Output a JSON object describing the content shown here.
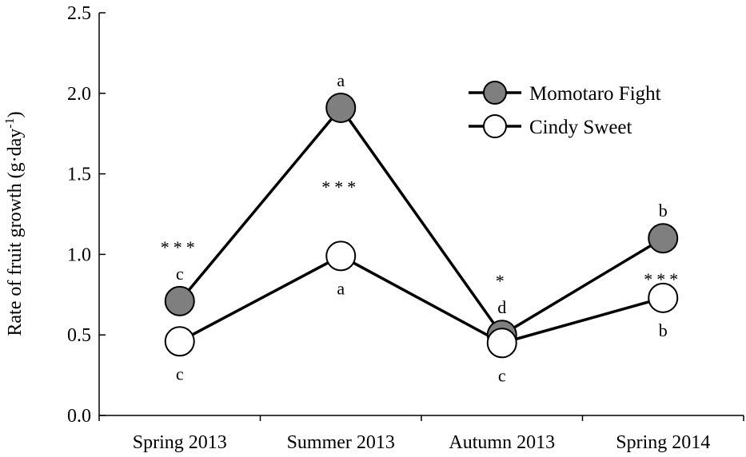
{
  "chart_data": {
    "type": "line",
    "title": "",
    "xlabel": "",
    "ylabel": {
      "main": "Rate of fruit growth (g·day",
      "superscript": "-1",
      "suffix": ")"
    },
    "categories": [
      "Spring 2013",
      "Summer 2013",
      "Autumn 2013",
      "Spring 2014"
    ],
    "ylim": [
      0,
      2.5
    ],
    "yticks": [
      "0.0",
      "0.5",
      "1.0",
      "1.5",
      "2.0",
      "2.5"
    ],
    "legend_position": "top-right",
    "grid": false,
    "series": [
      {
        "name": "Momotaro Fight",
        "marker_fill": "#7f7f7f",
        "values": [
          0.71,
          1.91,
          0.5,
          1.1
        ],
        "letters": [
          "c",
          "a",
          "d",
          "b"
        ]
      },
      {
        "name": "Cindy Sweet",
        "marker_fill": "#ffffff",
        "values": [
          0.46,
          0.99,
          0.45,
          0.73
        ],
        "letters": [
          "c",
          "a",
          "c",
          "b"
        ]
      }
    ],
    "significance": [
      "***",
      "***",
      "*",
      "***"
    ]
  }
}
